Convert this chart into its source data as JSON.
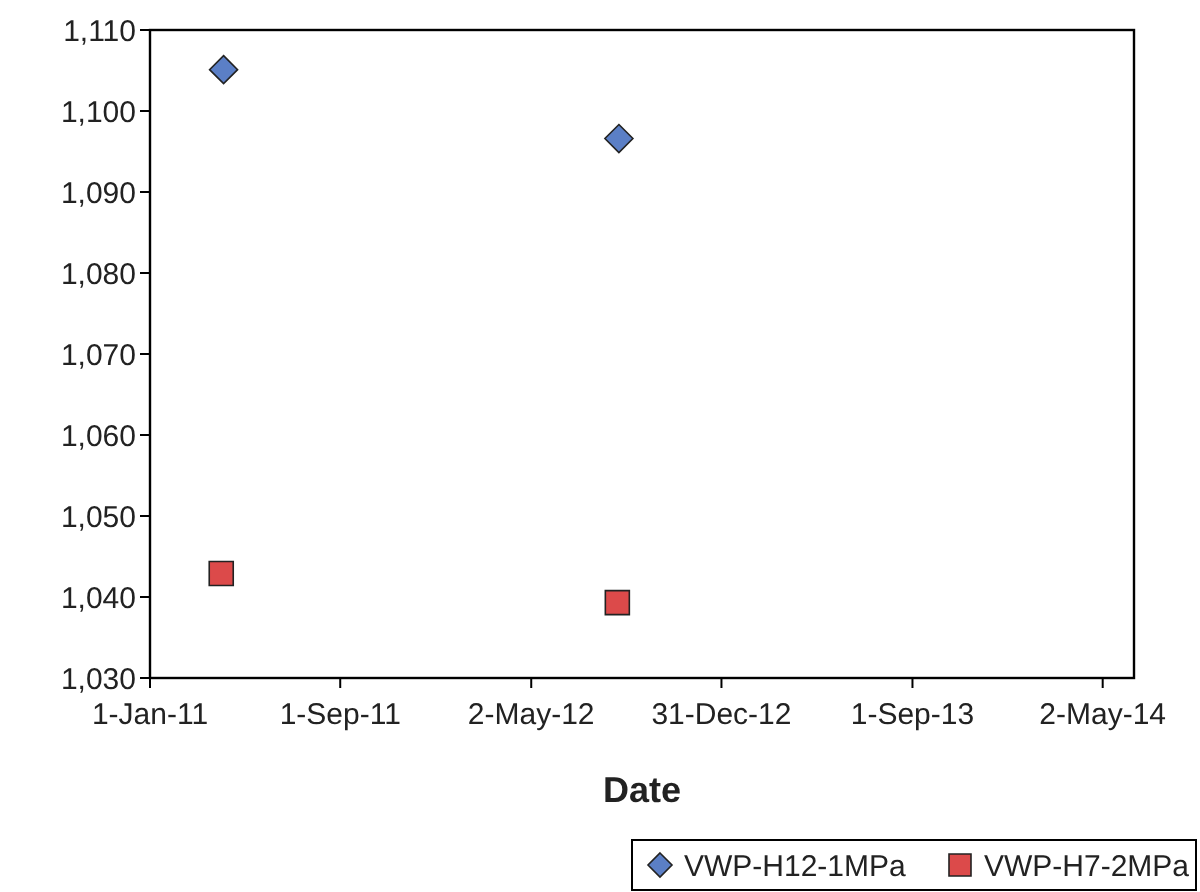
{
  "chart_data": {
    "type": "scatter",
    "xlabel": "Date",
    "x": [
      "2011-04-05",
      "2012-08-22"
    ],
    "series": [
      {
        "name": "VWP-H12-1MPa",
        "color": "#5b7fc6",
        "marker": "diamond",
        "values": [
          1105.1,
          1096.6
        ]
      },
      {
        "name": "VWP-H7-2MPa",
        "color": "#dc4a4a",
        "marker": "square",
        "x": [
          "2011-04-02",
          "2012-08-20"
        ],
        "values": [
          1042.9,
          1039.3
        ]
      }
    ],
    "xlim": [
      "2011-01-01",
      "2014-06-11"
    ],
    "xticks": [
      {
        "value": "2011-01-01",
        "label": "1-Jan-11"
      },
      {
        "value": "2011-09-01",
        "label": "1-Sep-11"
      },
      {
        "value": "2012-05-02",
        "label": "2-May-12"
      },
      {
        "value": "2012-12-31",
        "label": "31-Dec-12"
      },
      {
        "value": "2013-09-01",
        "label": "1-Sep-13"
      },
      {
        "value": "2014-05-02",
        "label": "2-May-14"
      }
    ],
    "ylim": [
      1030,
      1110
    ],
    "yticks": [
      {
        "value": 1030,
        "label": "1,030"
      },
      {
        "value": 1040,
        "label": "1,040"
      },
      {
        "value": 1050,
        "label": "1,050"
      },
      {
        "value": 1060,
        "label": "1,060"
      },
      {
        "value": 1070,
        "label": "1,070"
      },
      {
        "value": 1080,
        "label": "1,080"
      },
      {
        "value": 1090,
        "label": "1,090"
      },
      {
        "value": 1100,
        "label": "1,100"
      },
      {
        "value": 1110,
        "label": "1,110"
      }
    ],
    "legend": "bottom",
    "grid": false
  }
}
